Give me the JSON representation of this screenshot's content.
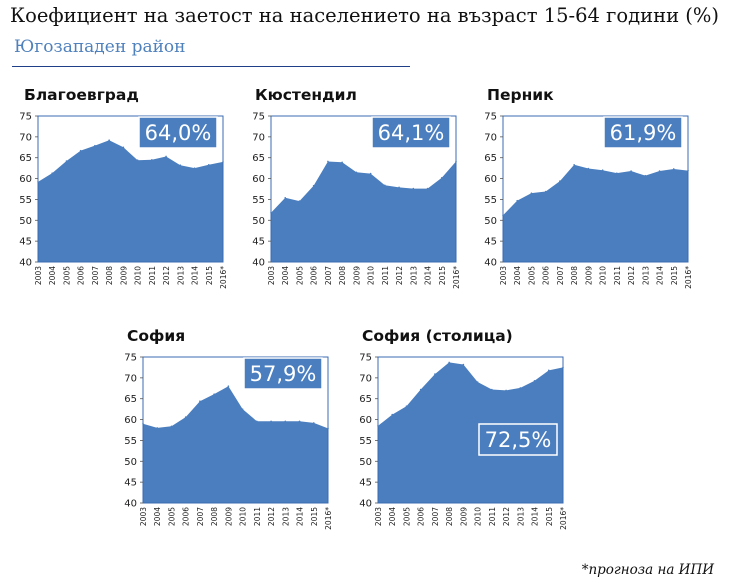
{
  "header": {
    "title": "Коефициент на заетост на населението на възраст 15-64 години (%)",
    "subtitle": "Югозападен район"
  },
  "footnote": "*прогноза на ИПИ",
  "colors": {
    "fill": "#4a7ebf",
    "border": "#3a6bb0",
    "badge_bg": "#4a7ebf",
    "badge_text": "#ffffff"
  },
  "chart_data": [
    {
      "type": "area",
      "title": "Благоевград",
      "categories": [
        "2003",
        "2004",
        "2005",
        "2006",
        "2007",
        "2008",
        "2009",
        "2010",
        "2011",
        "2012",
        "2013",
        "2014",
        "2015",
        "2016*"
      ],
      "values": [
        59.2,
        61.3,
        64.2,
        66.7,
        67.9,
        69.2,
        67.5,
        64.4,
        64.5,
        65.3,
        63.2,
        62.5,
        63.3,
        64.0
      ],
      "ylim": [
        40,
        75
      ],
      "yticks": [
        40,
        45,
        50,
        55,
        60,
        65,
        70,
        75
      ],
      "badge": "64,0%",
      "badge_position": "top-right",
      "grid": false
    },
    {
      "type": "area",
      "title": "Кюстендил",
      "categories": [
        "2003",
        "2004",
        "2005",
        "2006",
        "2007",
        "2008",
        "2009",
        "2010",
        "2011",
        "2012",
        "2013",
        "2014",
        "2015",
        "2016*"
      ],
      "values": [
        51.8,
        55.4,
        54.6,
        58.3,
        64.1,
        63.9,
        61.5,
        61.2,
        58.4,
        57.9,
        57.6,
        57.6,
        60.2,
        64.1
      ],
      "ylim": [
        40,
        75
      ],
      "yticks": [
        40,
        45,
        50,
        55,
        60,
        65,
        70,
        75
      ],
      "badge": "64,1%",
      "badge_position": "top-right",
      "grid": false
    },
    {
      "type": "area",
      "title": "Перник",
      "categories": [
        "2003",
        "2004",
        "2005",
        "2006",
        "2007",
        "2008",
        "2009",
        "2010",
        "2011",
        "2012",
        "2013",
        "2014",
        "2015",
        "2016*"
      ],
      "values": [
        51.2,
        54.7,
        56.5,
        56.9,
        59.4,
        63.3,
        62.4,
        62.0,
        61.3,
        61.8,
        60.7,
        61.8,
        62.3,
        61.9
      ],
      "ylim": [
        40,
        75
      ],
      "yticks": [
        40,
        45,
        50,
        55,
        60,
        65,
        70,
        75
      ],
      "badge": "61,9%",
      "badge_position": "top-right",
      "grid": false
    },
    {
      "type": "area",
      "title": "София",
      "categories": [
        "2003",
        "2004",
        "2005",
        "2006",
        "2007",
        "2008",
        "2009",
        "2010",
        "2011",
        "2012",
        "2013",
        "2014",
        "2015",
        "2016*"
      ],
      "values": [
        59.0,
        58.0,
        58.4,
        60.6,
        64.4,
        66.1,
        68.0,
        62.5,
        59.6,
        59.6,
        59.6,
        59.6,
        59.2,
        57.9
      ],
      "ylim": [
        40,
        75
      ],
      "yticks": [
        40,
        45,
        50,
        55,
        60,
        65,
        70,
        75
      ],
      "badge": "57,9%",
      "badge_position": "top-right",
      "grid": false
    },
    {
      "type": "area",
      "title": "София (столица)",
      "categories": [
        "2003",
        "2004",
        "2005",
        "2006",
        "2007",
        "2008",
        "2009",
        "2010",
        "2011",
        "2012",
        "2013",
        "2014",
        "2015",
        "2016*"
      ],
      "values": [
        58.5,
        61.2,
        63.2,
        67.2,
        70.9,
        73.7,
        73.2,
        69.0,
        67.2,
        67.0,
        67.6,
        69.3,
        71.8,
        72.5
      ],
      "ylim": [
        40,
        75
      ],
      "yticks": [
        40,
        45,
        50,
        55,
        60,
        65,
        70,
        75
      ],
      "badge": "72,5%",
      "badge_position": "bottom-right",
      "grid": false
    }
  ]
}
